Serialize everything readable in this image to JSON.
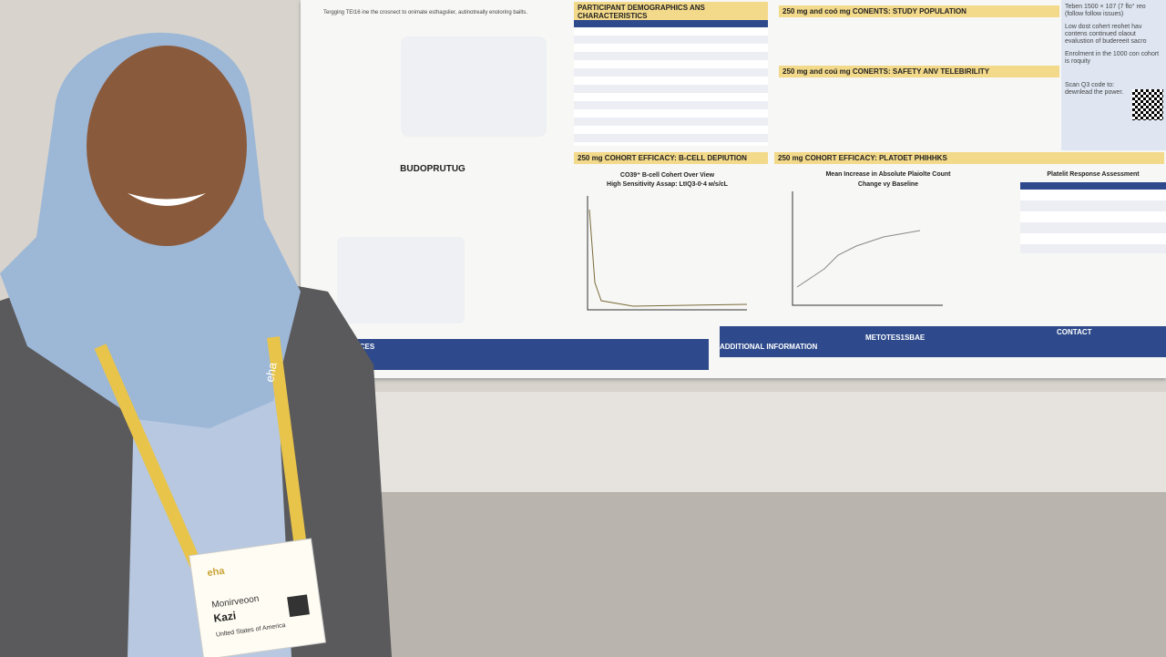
{
  "poster": {
    "left_title": "BUDOPRUTUG",
    "demographics_title": "PARTICIPANT DEMOGRAPHICS ANS CHARACTERISTICS",
    "population_title": "250 mg and coó mg CONENTS: STUDY POPULATION",
    "safety_title": "250 mg and coú mg CONERTS: SAFETY ANV TELEBIRILITY",
    "bcell_title": "250 mg COHORT EFFICACY: B-CELL DEPIUTION",
    "platelet_title": "250 mg COHORT EFFICACY: PLATOET PHIHHKS",
    "bcell_chart_title": "CO39⁺ B-cell Cohert Over View",
    "bcell_chart_subtitle": "High Sensitivity Assap: LtIQ3-0·4 ᴍ/s/cL",
    "platelet_chart_title": "Mean Increase in Absolute Plaiolte Count",
    "platelet_chart_subtitle": "Change vy Baseline",
    "platelet_table_title": "Platelit Response Assessment",
    "references_label": "NCES",
    "additional_label": "ADDITIONAL INFORMATION",
    "methods_label": "METOTES1SBAE",
    "contact_label": "CONTACT",
    "right_top": "Teben 1500 × 107 (7 flo° reo (follow follow issues)",
    "right_bullet_1": "Low dost cohert reohet hav contens continued olaout evalustion of budereeit sacro",
    "right_bullet_2": "Enrolment in the 1000 con cohort is roquity",
    "right_scan": "Scan Q3 code to: dewnlead the power."
  },
  "badge": {
    "brand": "eha",
    "first_name": "Monirveoon",
    "last_name": "Kazi",
    "country": "Unlted States of America"
  }
}
